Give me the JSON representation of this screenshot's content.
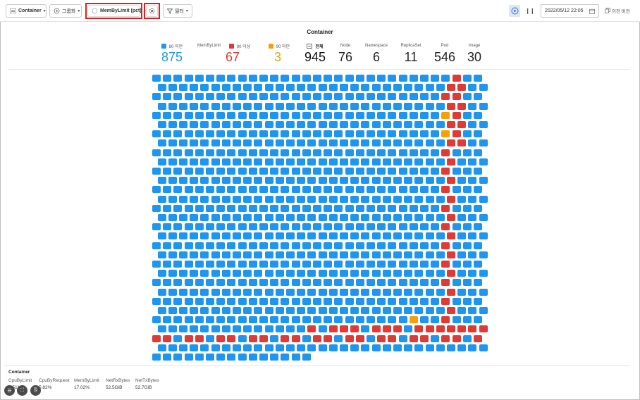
{
  "toolbar": {
    "view_label": "Container",
    "group_label": "그룹화",
    "metric_label": "MemByLimit (pct)",
    "filter_label": "필터",
    "date_value": "2022/05/12 22:05",
    "prev_version_label": "이전 버전"
  },
  "title": "Container",
  "stats": {
    "below80": {
      "label": "80 미만",
      "value": "875",
      "color": "#1e96f0"
    },
    "metric_name": "MemByLimit",
    "above90": {
      "label": "90 이상",
      "value": "67",
      "color": "#e03a36"
    },
    "below90": {
      "label": "90 미만",
      "value": "3",
      "color": "#f59f0a"
    },
    "total": {
      "label": "전체",
      "value": "945"
    },
    "node": {
      "label": "Node",
      "value": "76"
    },
    "namespace": {
      "label": "Namespace",
      "value": "6"
    },
    "replicaset": {
      "label": "ReplicaSet",
      "value": "11"
    },
    "pod": {
      "label": "Pod",
      "value": "546"
    },
    "image": {
      "label": "Image",
      "value": "30"
    }
  },
  "bottom": {
    "title": "Container",
    "metrics": [
      {
        "key": "CpuByLimit",
        "value": "3.51%"
      },
      {
        "key": "CpuByRequest",
        "value": "5.82%"
      },
      {
        "key": "MemByLimit",
        "value": "17.02%"
      },
      {
        "key": "NetRxBytes",
        "value": "52.5GiB"
      },
      {
        "key": "NetTxBytes",
        "value": "52.7GiB"
      }
    ]
  },
  "colors": {
    "blue": "#1e96f0",
    "red": "#e03a36",
    "orange": "#f59f0a"
  },
  "grid": {
    "cols": 31,
    "total_cells": 945,
    "red_cells": 67,
    "orange_cells": 3
  },
  "icons": [
    "list-icon",
    "group-icon",
    "settings-icon",
    "filter-icon",
    "play-icon",
    "pause-icon",
    "calendar-icon",
    "copy-icon",
    "summary-icon",
    "fullscreen-icon",
    "export-icon",
    "spinner-icon"
  ]
}
